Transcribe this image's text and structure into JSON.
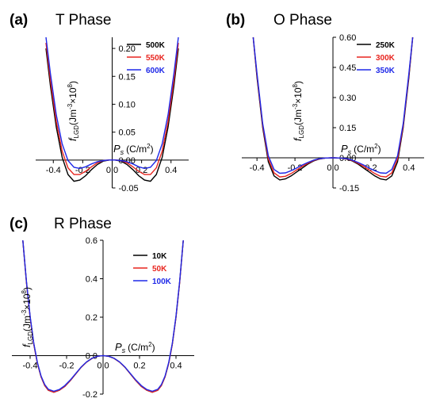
{
  "x_axis_label": {
    "symbol": "P",
    "sub": "s",
    "unit": "(C/m",
    "unit_sup": "2",
    "unit_close": ")"
  },
  "y_axis_label": {
    "symbol": "f",
    "sub": "LGD",
    "unit": "(Jm",
    "unit_sup": "-3",
    "mult": "×10",
    "mult_sup": "8",
    "unit_close": ")"
  },
  "chart_data": [
    {
      "type": "line",
      "panel_label": "(a)",
      "title": "T Phase",
      "xlim": [
        -0.52,
        0.52
      ],
      "ylim": [
        -0.05,
        0.22
      ],
      "xticks": [
        -0.4,
        -0.2,
        0.0,
        0.2,
        0.4
      ],
      "xtick_labels": [
        "-0.4",
        "-0.2",
        "0.0",
        "0.2",
        "0.4"
      ],
      "yticks": [
        -0.05,
        0.0,
        0.05,
        0.1,
        0.15,
        0.2
      ],
      "ytick_labels": [
        "-0.05",
        "0.00",
        "0.05",
        "0.10",
        "0.15",
        "0.20"
      ],
      "grid": false,
      "legend_position": "top-right",
      "series": [
        {
          "name": "500K",
          "color": "#000000",
          "x": [
            -0.45,
            -0.42,
            -0.38,
            -0.34,
            -0.3,
            -0.26,
            -0.22,
            -0.18,
            -0.14,
            -0.1,
            -0.06,
            -0.02,
            0.0,
            0.02,
            0.06,
            0.1,
            0.14,
            0.18,
            0.22,
            0.26,
            0.3,
            0.34,
            0.38,
            0.42,
            0.45
          ],
          "y": [
            0.2,
            0.133,
            0.059,
            0.005,
            -0.026,
            -0.038,
            -0.036,
            -0.028,
            -0.017,
            -0.008,
            -0.002,
            0.0,
            0.0,
            0.0,
            -0.002,
            -0.008,
            -0.017,
            -0.028,
            -0.036,
            -0.038,
            -0.026,
            0.005,
            0.059,
            0.133,
            0.2
          ]
        },
        {
          "name": "550K",
          "color": "#e8251f",
          "x": [
            -0.45,
            -0.42,
            -0.38,
            -0.34,
            -0.3,
            -0.26,
            -0.22,
            -0.18,
            -0.14,
            -0.1,
            -0.06,
            -0.02,
            0.0,
            0.02,
            0.06,
            0.1,
            0.14,
            0.18,
            0.22,
            0.26,
            0.3,
            0.34,
            0.38,
            0.42,
            0.45
          ],
          "y": [
            0.21,
            0.143,
            0.069,
            0.016,
            -0.014,
            -0.026,
            -0.026,
            -0.02,
            -0.012,
            -0.005,
            -0.001,
            0.0,
            0.0,
            0.0,
            -0.001,
            -0.005,
            -0.012,
            -0.02,
            -0.026,
            -0.026,
            -0.014,
            0.016,
            0.069,
            0.143,
            0.21
          ]
        },
        {
          "name": "600K",
          "color": "#1f29e8",
          "x": [
            -0.45,
            -0.42,
            -0.38,
            -0.34,
            -0.3,
            -0.26,
            -0.22,
            -0.18,
            -0.14,
            -0.1,
            -0.06,
            -0.02,
            0.0,
            0.02,
            0.06,
            0.1,
            0.14,
            0.18,
            0.22,
            0.26,
            0.3,
            0.34,
            0.38,
            0.42,
            0.45
          ],
          "y": [
            0.22,
            0.155,
            0.081,
            0.029,
            -0.001,
            -0.013,
            -0.015,
            -0.012,
            -0.007,
            -0.003,
            -0.001,
            0.0,
            0.0,
            0.0,
            -0.001,
            -0.003,
            -0.007,
            -0.012,
            -0.015,
            -0.013,
            -0.001,
            0.029,
            0.081,
            0.155,
            0.22
          ]
        }
      ]
    },
    {
      "type": "line",
      "panel_label": "(b)",
      "title": "O Phase",
      "xlim": [
        -0.48,
        0.48
      ],
      "ylim": [
        -0.15,
        0.6
      ],
      "xticks": [
        -0.4,
        -0.2,
        0.0,
        0.2,
        0.4
      ],
      "xtick_labels": [
        "-0.4",
        "-0.2",
        "0.0",
        "0.2",
        "0.4"
      ],
      "yticks": [
        -0.15,
        0.0,
        0.15,
        0.3,
        0.45,
        0.6
      ],
      "ytick_labels": [
        "-0.15",
        "0.00",
        "0.15",
        "0.30",
        "0.45",
        "0.60"
      ],
      "grid": false,
      "legend_position": "top-right",
      "series": [
        {
          "name": "250K",
          "color": "#000000",
          "x": [
            -0.42,
            -0.4,
            -0.37,
            -0.34,
            -0.31,
            -0.28,
            -0.25,
            -0.22,
            -0.19,
            -0.16,
            -0.13,
            -0.1,
            -0.07,
            -0.04,
            0.0,
            0.04,
            0.07,
            0.1,
            0.13,
            0.16,
            0.19,
            0.22,
            0.25,
            0.28,
            0.31,
            0.34,
            0.37,
            0.4,
            0.42
          ],
          "y": [
            0.6,
            0.4,
            0.15,
            -0.02,
            -0.09,
            -0.11,
            -0.105,
            -0.09,
            -0.07,
            -0.05,
            -0.03,
            -0.015,
            -0.006,
            -0.001,
            0.0,
            -0.001,
            -0.006,
            -0.015,
            -0.03,
            -0.05,
            -0.07,
            -0.09,
            -0.105,
            -0.11,
            -0.09,
            -0.02,
            0.15,
            0.4,
            0.6
          ]
        },
        {
          "name": "300K",
          "color": "#e8251f",
          "x": [
            -0.42,
            -0.4,
            -0.37,
            -0.34,
            -0.31,
            -0.28,
            -0.25,
            -0.22,
            -0.19,
            -0.16,
            -0.13,
            -0.1,
            -0.07,
            -0.04,
            0.0,
            0.04,
            0.07,
            0.1,
            0.13,
            0.16,
            0.19,
            0.22,
            0.25,
            0.28,
            0.31,
            0.34,
            0.37,
            0.4,
            0.42
          ],
          "y": [
            0.6,
            0.41,
            0.16,
            -0.005,
            -0.075,
            -0.095,
            -0.092,
            -0.078,
            -0.06,
            -0.042,
            -0.026,
            -0.013,
            -0.005,
            -0.001,
            0.0,
            -0.001,
            -0.005,
            -0.013,
            -0.026,
            -0.042,
            -0.06,
            -0.078,
            -0.092,
            -0.095,
            -0.075,
            -0.005,
            0.16,
            0.41,
            0.6
          ]
        },
        {
          "name": "350K",
          "color": "#1f29e8",
          "x": [
            -0.42,
            -0.4,
            -0.37,
            -0.34,
            -0.31,
            -0.28,
            -0.25,
            -0.22,
            -0.19,
            -0.16,
            -0.13,
            -0.1,
            -0.07,
            -0.04,
            0.0,
            0.04,
            0.07,
            0.1,
            0.13,
            0.16,
            0.19,
            0.22,
            0.25,
            0.28,
            0.31,
            0.34,
            0.37,
            0.4,
            0.42
          ],
          "y": [
            0.6,
            0.42,
            0.17,
            0.01,
            -0.058,
            -0.077,
            -0.075,
            -0.064,
            -0.05,
            -0.035,
            -0.022,
            -0.011,
            -0.004,
            -0.001,
            0.0,
            -0.001,
            -0.004,
            -0.011,
            -0.022,
            -0.035,
            -0.05,
            -0.064,
            -0.075,
            -0.077,
            -0.058,
            0.01,
            0.17,
            0.42,
            0.6
          ]
        }
      ]
    },
    {
      "type": "line",
      "panel_label": "(c)",
      "title": "R Phase",
      "xlim": [
        -0.5,
        0.5
      ],
      "ylim": [
        -0.2,
        0.6
      ],
      "xticks": [
        -0.4,
        -0.2,
        0.0,
        0.2,
        0.4
      ],
      "xtick_labels": [
        "-0.4",
        "-0.2",
        "0.0",
        "0.2",
        "0.4"
      ],
      "yticks": [
        -0.2,
        0.0,
        0.2,
        0.4,
        0.6
      ],
      "ytick_labels": [
        "-0.2",
        "0.0",
        "0.2",
        "0.4",
        "0.6"
      ],
      "grid": false,
      "legend_position": "top-right",
      "series": [
        {
          "name": "10K",
          "color": "#000000",
          "x": [
            -0.44,
            -0.42,
            -0.4,
            -0.38,
            -0.36,
            -0.34,
            -0.32,
            -0.3,
            -0.27,
            -0.24,
            -0.21,
            -0.18,
            -0.15,
            -0.12,
            -0.09,
            -0.06,
            -0.03,
            0.0,
            0.03,
            0.06,
            0.09,
            0.12,
            0.15,
            0.18,
            0.21,
            0.24,
            0.27,
            0.3,
            0.32,
            0.34,
            0.36,
            0.38,
            0.4,
            0.42,
            0.44
          ],
          "y": [
            0.6,
            0.38,
            0.2,
            0.06,
            -0.04,
            -0.11,
            -0.155,
            -0.18,
            -0.19,
            -0.18,
            -0.16,
            -0.13,
            -0.095,
            -0.06,
            -0.033,
            -0.014,
            -0.003,
            0.0,
            -0.003,
            -0.014,
            -0.033,
            -0.06,
            -0.095,
            -0.13,
            -0.16,
            -0.18,
            -0.19,
            -0.18,
            -0.155,
            -0.11,
            -0.04,
            0.06,
            0.2,
            0.38,
            0.6
          ]
        },
        {
          "name": "50K",
          "color": "#e8251f",
          "x": [
            -0.44,
            -0.42,
            -0.4,
            -0.38,
            -0.36,
            -0.34,
            -0.32,
            -0.3,
            -0.27,
            -0.24,
            -0.21,
            -0.18,
            -0.15,
            -0.12,
            -0.09,
            -0.06,
            -0.03,
            0.0,
            0.03,
            0.06,
            0.09,
            0.12,
            0.15,
            0.18,
            0.21,
            0.24,
            0.27,
            0.3,
            0.32,
            0.34,
            0.36,
            0.38,
            0.4,
            0.42,
            0.44
          ],
          "y": [
            0.6,
            0.38,
            0.2,
            0.06,
            -0.04,
            -0.11,
            -0.155,
            -0.18,
            -0.19,
            -0.18,
            -0.16,
            -0.13,
            -0.095,
            -0.06,
            -0.033,
            -0.014,
            -0.003,
            0.0,
            -0.003,
            -0.014,
            -0.033,
            -0.06,
            -0.095,
            -0.13,
            -0.16,
            -0.18,
            -0.19,
            -0.18,
            -0.155,
            -0.11,
            -0.04,
            0.06,
            0.2,
            0.38,
            0.6
          ]
        },
        {
          "name": "100K",
          "color": "#1f29e8",
          "x": [
            -0.44,
            -0.42,
            -0.4,
            -0.38,
            -0.36,
            -0.34,
            -0.32,
            -0.3,
            -0.27,
            -0.24,
            -0.21,
            -0.18,
            -0.15,
            -0.12,
            -0.09,
            -0.06,
            -0.03,
            0.0,
            0.03,
            0.06,
            0.09,
            0.12,
            0.15,
            0.18,
            0.21,
            0.24,
            0.27,
            0.3,
            0.32,
            0.34,
            0.36,
            0.38,
            0.4,
            0.42,
            0.44
          ],
          "y": [
            0.6,
            0.385,
            0.205,
            0.065,
            -0.036,
            -0.106,
            -0.15,
            -0.175,
            -0.185,
            -0.176,
            -0.156,
            -0.127,
            -0.093,
            -0.059,
            -0.032,
            -0.013,
            -0.003,
            0.0,
            -0.003,
            -0.013,
            -0.032,
            -0.059,
            -0.093,
            -0.127,
            -0.156,
            -0.176,
            -0.185,
            -0.175,
            -0.15,
            -0.106,
            -0.036,
            0.065,
            0.205,
            0.385,
            0.6
          ]
        }
      ]
    }
  ]
}
